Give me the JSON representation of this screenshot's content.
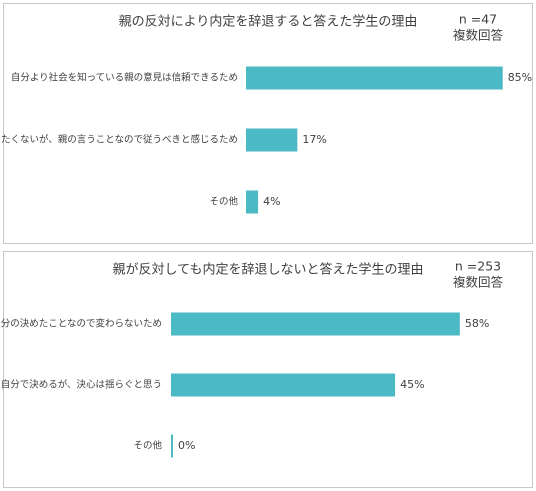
{
  "chart_data": [
    {
      "type": "bar",
      "orientation": "horizontal",
      "title": "親の反対により内定を辞退すると答えた学生の理由",
      "note": "n =47",
      "note2": "複数回答",
      "categories": [
        "自分より社会を知っている親の意見は信頼できるため",
        "辞退したくないが、親の言うことなので従うべきと感じるため",
        "その他"
      ],
      "values": [
        85,
        17,
        4
      ],
      "value_labels": [
        "85%",
        "17%",
        "4%"
      ],
      "color": "#4bbac4",
      "xlim": [
        0,
        100
      ]
    },
    {
      "type": "bar",
      "orientation": "horizontal",
      "title": "親が反対しても内定を辞退しないと答えた学生の理由",
      "note": "n =253",
      "note2": "複数回答",
      "categories": [
        "自分の決めたことなので変わらないため",
        "自分で決めるが、決心は揺らぐと思う",
        "その他"
      ],
      "values": [
        58,
        45,
        0
      ],
      "value_labels": [
        "58%",
        "45%",
        "0%"
      ],
      "color": "#4bbac4",
      "xlim": [
        0,
        100
      ]
    }
  ]
}
